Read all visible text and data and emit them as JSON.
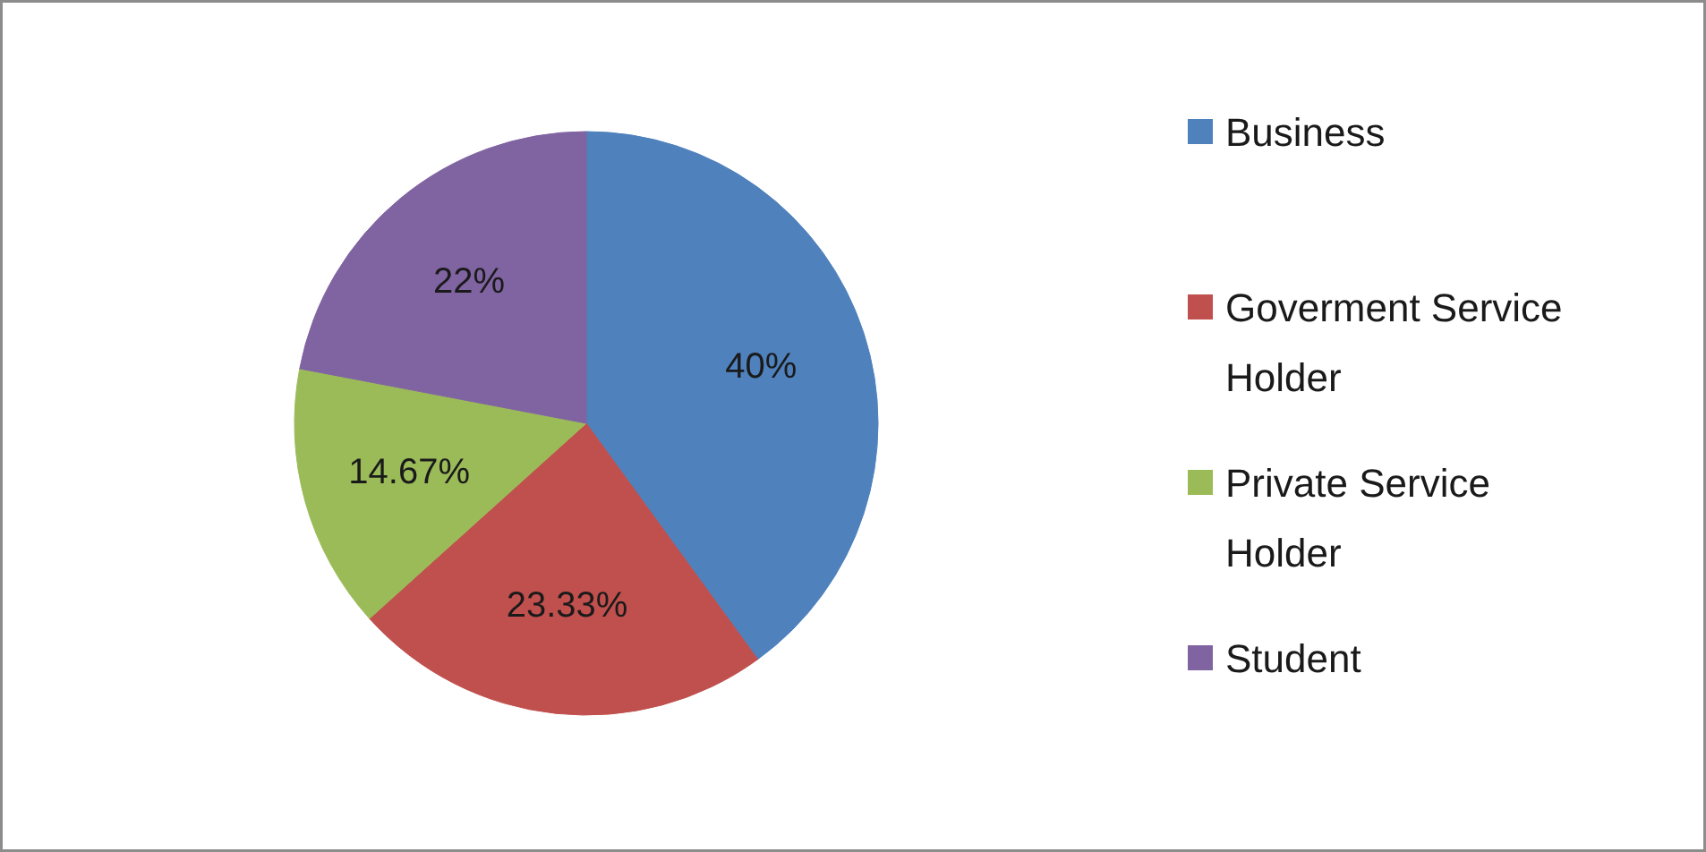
{
  "chart_data": {
    "type": "pie",
    "categories": [
      "Business",
      "Goverment Service Holder",
      "Private Service Holder",
      "Student"
    ],
    "values": [
      40,
      23.33,
      14.67,
      22
    ],
    "colors": [
      "#4f81bd",
      "#c0504d",
      "#9bbb59",
      "#8064a2"
    ],
    "value_labels": [
      "40%",
      "23.33%",
      "14.67%",
      "22%"
    ],
    "legend": "right"
  }
}
